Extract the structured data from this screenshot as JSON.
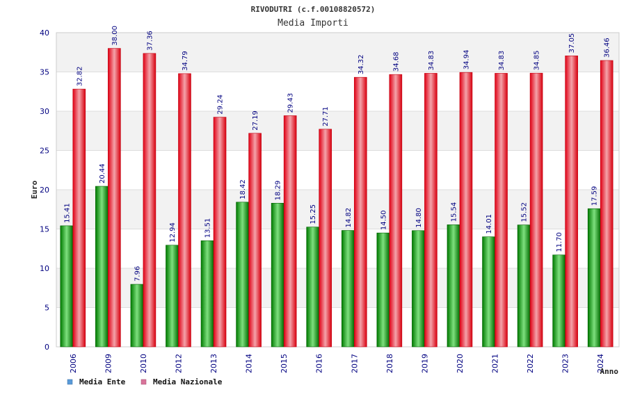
{
  "chart_data": {
    "type": "bar",
    "title": "RIVODUTRI (c.f.00108820572)",
    "subtitle": "Media Importi",
    "xlabel": "Anno",
    "ylabel": "Euro",
    "ylim": [
      0,
      40
    ],
    "yticks": [
      0,
      5,
      10,
      15,
      20,
      25,
      30,
      35,
      40
    ],
    "grid": true,
    "legend_position": "bottom-left",
    "categories": [
      "2006",
      "2009",
      "2010",
      "2012",
      "2013",
      "2014",
      "2015",
      "2016",
      "2017",
      "2018",
      "2019",
      "2020",
      "2021",
      "2022",
      "2023",
      "2024"
    ],
    "series": [
      {
        "name": "Media Ente",
        "color": "#00a800",
        "legend_color": "#5a9bd8",
        "values": [
          15.41,
          20.44,
          7.96,
          12.94,
          13.51,
          18.42,
          18.29,
          15.25,
          14.82,
          14.5,
          14.8,
          15.54,
          14.01,
          15.52,
          11.7,
          17.59
        ],
        "labels": [
          "15.41",
          "20.44",
          "7.96",
          "12.94",
          "13.51",
          "18.42",
          "18.29",
          "15.25",
          "14.82",
          "14.50",
          "14.80",
          "15.54",
          "14.01",
          "15.52",
          "11.70",
          "17.59"
        ]
      },
      {
        "name": "Media Nazionale",
        "color": "#e8101e",
        "legend_color": "#d9759b",
        "values": [
          32.82,
          38.0,
          37.36,
          34.79,
          29.24,
          27.19,
          29.43,
          27.71,
          34.32,
          34.68,
          34.83,
          34.94,
          34.83,
          34.85,
          37.05,
          36.46
        ],
        "labels": [
          "32.82",
          "38.00",
          "37.36",
          "34.79",
          "29.24",
          "27.19",
          "29.43",
          "27.71",
          "34.32",
          "34.68",
          "34.83",
          "34.94",
          "34.83",
          "34.85",
          "37.05",
          "36.46"
        ]
      }
    ]
  }
}
